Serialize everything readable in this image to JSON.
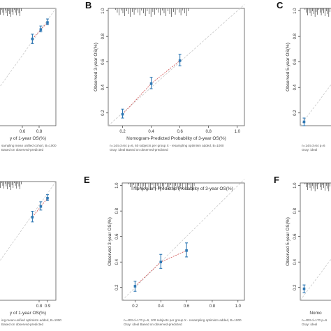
{
  "chart_data": [
    {
      "panel": "",
      "type": "scatter",
      "ylabel": "",
      "xlabel": "y of 1-year OS(%)",
      "x_ticks": [
        "0.6",
        "0.8"
      ],
      "y_ticks": [],
      "xlim": [
        0.0,
        1.0
      ],
      "ylim": [
        0.0,
        1.0
      ],
      "points": [
        {
          "x": 0.72,
          "y": 0.74,
          "lo": 0.7,
          "hi": 0.78
        },
        {
          "x": 0.82,
          "y": 0.82,
          "lo": 0.8,
          "hi": 0.85
        },
        {
          "x": 0.9,
          "y": 0.88,
          "lo": 0.86,
          "hi": 0.91
        }
      ],
      "footnote_lines": [
        "sampling mean unified cohort, B=1000",
        "Based on observed-predicted"
      ]
    },
    {
      "panel": "B",
      "type": "scatter",
      "ylabel": "Observed 3-year OS(%)",
      "xlabel": "Nomogram-Predicted Probability of 3-year OS(%)",
      "x_ticks": [
        "0.2",
        "0.4",
        "0.6",
        "0.8",
        "1.0"
      ],
      "y_ticks": [
        "0.2",
        "0.4",
        "0.6",
        "0.8",
        "1.0"
      ],
      "xlim": [
        0.1,
        1.05
      ],
      "ylim": [
        0.1,
        1.02
      ],
      "points": [
        {
          "x": 0.2,
          "y": 0.19,
          "lo": 0.16,
          "hi": 0.23
        },
        {
          "x": 0.4,
          "y": 0.43,
          "lo": 0.39,
          "hi": 0.48
        },
        {
          "x": 0.6,
          "y": 0.61,
          "lo": 0.57,
          "hi": 0.66
        }
      ],
      "footnote_lines": [
        "n=144 d=64 p=6, 60 subjects per group   X - resampling optimism added, B=1000",
        "Gray: ideal                                  Based on observed-predicted"
      ]
    },
    {
      "panel": "C",
      "type": "scatter",
      "ylabel": "Observed 5-year OS(%)",
      "xlabel": "",
      "x_ticks": [],
      "y_ticks": [
        "0.2",
        "0.4",
        "0.6",
        "0.8",
        "1.0"
      ],
      "xlim": [
        0.1,
        1.05
      ],
      "ylim": [
        0.1,
        1.02
      ],
      "points": [
        {
          "x": 0.14,
          "y": 0.13,
          "lo": 0.1,
          "hi": 0.16
        }
      ],
      "footnote_lines": [
        "n=144 d=64 p=6",
        "Gray: ideal"
      ]
    },
    {
      "panel": "",
      "type": "scatter",
      "ylabel": "",
      "xlabel": "y of 1-year OS(%)",
      "x_ticks": [
        "0.8",
        "0.9"
      ],
      "y_ticks": [],
      "xlim": [
        0.0,
        1.0
      ],
      "ylim": [
        0.0,
        1.0
      ],
      "points": [
        {
          "x": 0.72,
          "y": 0.7,
          "lo": 0.66,
          "hi": 0.75
        },
        {
          "x": 0.82,
          "y": 0.79,
          "lo": 0.76,
          "hi": 0.83
        },
        {
          "x": 0.9,
          "y": 0.86,
          "lo": 0.84,
          "hi": 0.89
        }
      ],
      "footnote_lines": [
        "ing mean unified optimism added, B=1000",
        "Based on observed-predicted"
      ]
    },
    {
      "panel": "E",
      "type": "scatter",
      "ylabel": "Observed 3-year OS(%)",
      "xlabel": "Nomogram-Predicted Probability of 3-year OS(%)",
      "x_ticks": [
        "0.2",
        "0.4",
        "0.6",
        "0.8",
        "1.0"
      ],
      "y_ticks": [
        "0.2",
        "0.4",
        "0.6",
        "0.8",
        "1.0"
      ],
      "xlim": [
        0.1,
        1.05
      ],
      "ylim": [
        0.1,
        1.02
      ],
      "points": [
        {
          "x": 0.2,
          "y": 0.21,
          "lo": 0.17,
          "hi": 0.25
        },
        {
          "x": 0.4,
          "y": 0.4,
          "lo": 0.35,
          "hi": 0.46
        },
        {
          "x": 0.6,
          "y": 0.49,
          "lo": 0.44,
          "hi": 0.55
        }
      ],
      "footnote_lines": [
        "n=403 d=170 p=6, 100 subjects per group   X - resampling optimism added, B=1000",
        "Gray: ideal                                  Based on observed-predicted"
      ]
    },
    {
      "panel": "F",
      "type": "scatter",
      "ylabel": "Observed 5-year OS(%)",
      "xlabel": "Nomo",
      "x_ticks": [],
      "y_ticks": [
        "0.2",
        "0.4",
        "0.6",
        "0.8",
        "1.0"
      ],
      "xlim": [
        0.1,
        1.05
      ],
      "ylim": [
        0.1,
        1.02
      ],
      "points": [
        {
          "x": 0.14,
          "y": 0.19,
          "lo": 0.16,
          "hi": 0.22
        }
      ],
      "footnote_lines": [
        "n=403 d=170 p=6",
        "Gray: ideal"
      ]
    }
  ]
}
